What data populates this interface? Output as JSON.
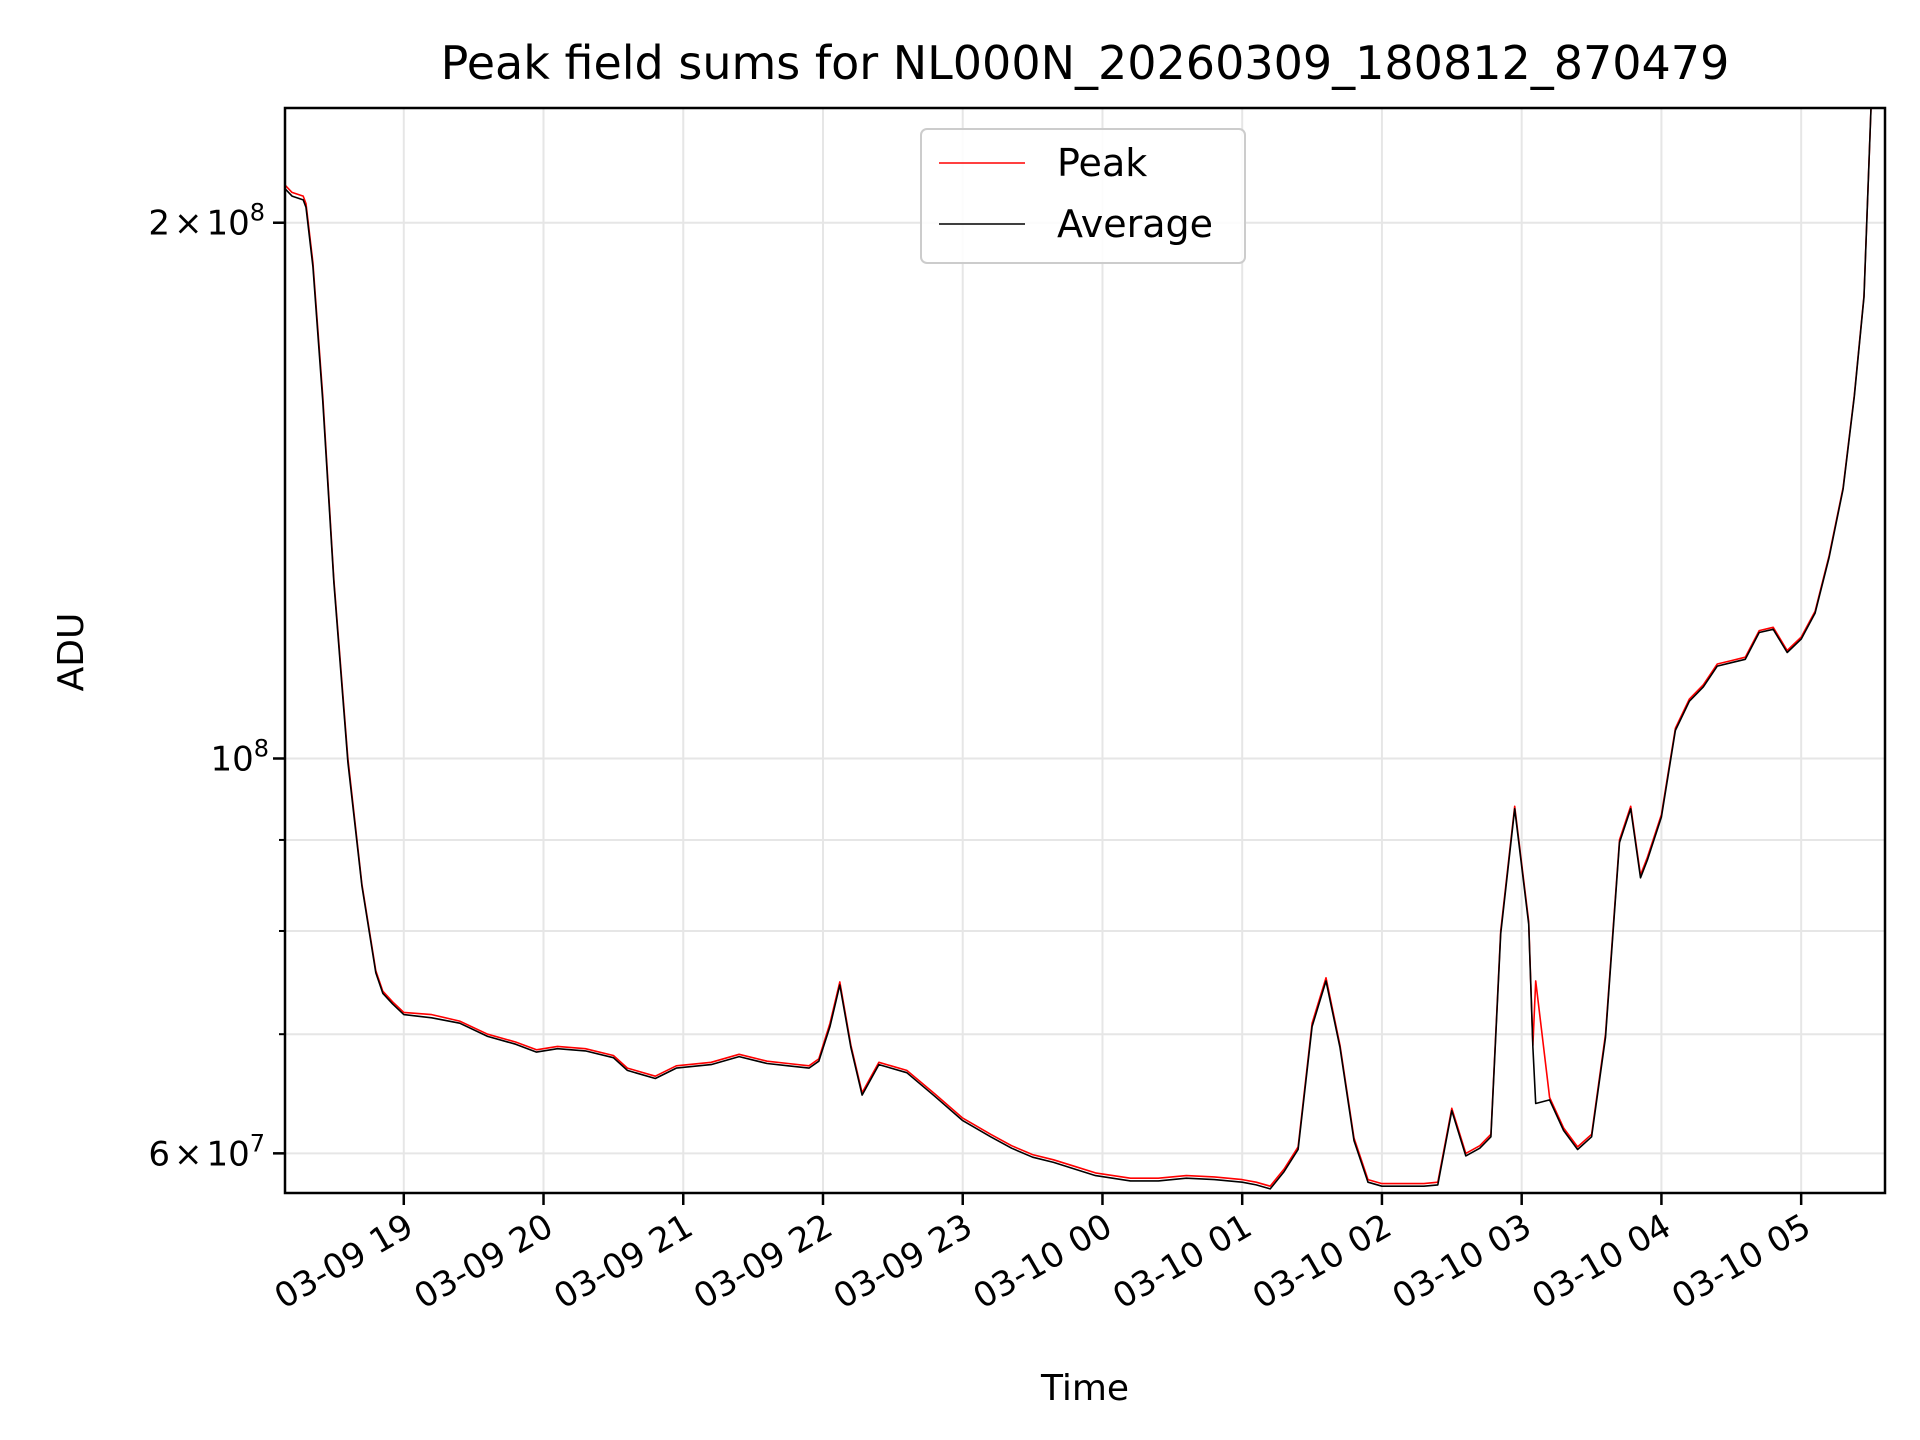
{
  "chart_data": {
    "type": "line",
    "title": "Peak field sums for NL000N_20260309_180812_870479",
    "xlabel": "Time",
    "ylabel": "ADU",
    "yscale": "log",
    "ylim": [
      57000000,
      232000000
    ],
    "xlim_hours": [
      18.15,
      29.6
    ],
    "grid": true,
    "legend_position": "top-center",
    "x_ticks": [
      {
        "hour": 19,
        "label": "03-09 19"
      },
      {
        "hour": 20,
        "label": "03-09 20"
      },
      {
        "hour": 21,
        "label": "03-09 21"
      },
      {
        "hour": 22,
        "label": "03-09 22"
      },
      {
        "hour": 23,
        "label": "03-09 23"
      },
      {
        "hour": 24,
        "label": "03-10 00"
      },
      {
        "hour": 25,
        "label": "03-10 01"
      },
      {
        "hour": 26,
        "label": "03-10 02"
      },
      {
        "hour": 27,
        "label": "03-10 03"
      },
      {
        "hour": 28,
        "label": "03-10 04"
      },
      {
        "hour": 29,
        "label": "03-10 05"
      }
    ],
    "y_major_ticks": [
      {
        "value": 60000000,
        "mantissa": "6",
        "times": "×",
        "base": "10",
        "exp": "7"
      },
      {
        "value": 100000000,
        "mantissa": "",
        "times": "",
        "base": "10",
        "exp": "8"
      },
      {
        "value": 200000000,
        "mantissa": "2",
        "times": "×",
        "base": "10",
        "exp": "8"
      }
    ],
    "y_minor_gridlines": [
      70000000,
      80000000,
      90000000
    ],
    "series": [
      {
        "name": "Peak",
        "color": "#ff0000",
        "x_hours": [
          18.15,
          18.2,
          18.28,
          18.3,
          18.35,
          18.42,
          18.5,
          18.6,
          18.7,
          18.8,
          18.85,
          18.92,
          19.0,
          19.2,
          19.4,
          19.6,
          19.8,
          19.95,
          20.1,
          20.3,
          20.5,
          20.6,
          20.8,
          20.95,
          21.2,
          21.4,
          21.6,
          21.75,
          21.9,
          21.97,
          22.05,
          22.12,
          22.2,
          22.28,
          22.4,
          22.6,
          22.8,
          23.0,
          23.2,
          23.35,
          23.5,
          23.65,
          23.8,
          23.95,
          24.2,
          24.4,
          24.6,
          24.8,
          25.0,
          25.1,
          25.2,
          25.3,
          25.4,
          25.5,
          25.6,
          25.7,
          25.8,
          25.9,
          26.0,
          26.2,
          26.3,
          26.4,
          26.5,
          26.6,
          26.7,
          26.78,
          26.85,
          26.95,
          27.05,
          27.08,
          27.1,
          27.2,
          27.3,
          27.4,
          27.5,
          27.6,
          27.7,
          27.78,
          27.85,
          27.9,
          28.0,
          28.1,
          28.2,
          28.3,
          28.4,
          28.5,
          28.6,
          28.7,
          28.8,
          28.9,
          29.0,
          29.1,
          29.2,
          29.3,
          29.38,
          29.45,
          29.5
        ],
        "values": [
          210000000,
          208000000,
          207000000,
          205000000,
          190000000,
          160000000,
          126000000,
          100000000,
          85000000,
          76000000,
          74000000,
          73000000,
          72000000,
          71800000,
          71200000,
          70000000,
          69300000,
          68600000,
          68900000,
          68700000,
          68100000,
          67000000,
          66300000,
          67200000,
          67500000,
          68200000,
          67600000,
          67400000,
          67200000,
          67800000,
          71000000,
          74900000,
          69000000,
          64900000,
          67500000,
          66800000,
          64800000,
          62800000,
          61500000,
          60600000,
          59900000,
          59500000,
          59000000,
          58500000,
          58100000,
          58100000,
          58300000,
          58200000,
          58000000,
          57800000,
          57500000,
          58800000,
          60500000,
          71000000,
          75300000,
          69000000,
          61200000,
          58000000,
          57700000,
          57700000,
          57700000,
          57800000,
          63600000,
          60000000,
          60600000,
          61500000,
          80000000,
          94000000,
          81000000,
          69000000,
          75000000,
          64500000,
          62000000,
          60500000,
          61500000,
          70000000,
          90000000,
          94000000,
          86000000,
          88000000,
          93000000,
          104000000,
          108000000,
          110000000,
          113000000,
          113500000,
          114000000,
          118000000,
          118500000,
          115000000,
          117000000,
          121000000,
          130000000,
          142000000,
          160000000,
          182000000,
          232000000
        ]
      },
      {
        "name": "Average",
        "color": "#000000",
        "x_hours": [
          18.15,
          18.2,
          18.28,
          18.3,
          18.35,
          18.42,
          18.5,
          18.6,
          18.7,
          18.8,
          18.85,
          18.92,
          19.0,
          19.2,
          19.4,
          19.6,
          19.8,
          19.95,
          20.1,
          20.3,
          20.5,
          20.6,
          20.8,
          20.95,
          21.2,
          21.4,
          21.6,
          21.75,
          21.9,
          21.97,
          22.05,
          22.12,
          22.2,
          22.28,
          22.4,
          22.6,
          22.8,
          23.0,
          23.2,
          23.35,
          23.5,
          23.65,
          23.8,
          23.95,
          24.2,
          24.4,
          24.6,
          24.8,
          25.0,
          25.1,
          25.2,
          25.3,
          25.4,
          25.5,
          25.6,
          25.7,
          25.8,
          25.9,
          26.0,
          26.2,
          26.3,
          26.4,
          26.5,
          26.6,
          26.7,
          26.78,
          26.85,
          26.95,
          27.05,
          27.08,
          27.1,
          27.2,
          27.3,
          27.4,
          27.5,
          27.6,
          27.7,
          27.78,
          27.85,
          27.9,
          28.0,
          28.1,
          28.2,
          28.3,
          28.4,
          28.5,
          28.6,
          28.7,
          28.8,
          28.9,
          29.0,
          29.1,
          29.2,
          29.3,
          29.38,
          29.45,
          29.5
        ],
        "values": [
          209000000,
          207000000,
          206000000,
          204000000,
          189000000,
          159000000,
          125500000,
          99500000,
          84800000,
          75800000,
          73800000,
          72800000,
          71800000,
          71500000,
          71000000,
          69800000,
          69100000,
          68400000,
          68700000,
          68500000,
          67900000,
          66800000,
          66100000,
          67000000,
          67300000,
          68000000,
          67400000,
          67200000,
          67000000,
          67600000,
          70700000,
          74600000,
          68800000,
          64700000,
          67300000,
          66600000,
          64600000,
          62600000,
          61300000,
          60400000,
          59700000,
          59300000,
          58800000,
          58300000,
          57900000,
          57900000,
          58100000,
          58000000,
          57800000,
          57600000,
          57300000,
          58600000,
          60300000,
          70700000,
          75000000,
          68800000,
          61000000,
          57800000,
          57500000,
          57500000,
          57500000,
          57600000,
          63400000,
          59800000,
          60400000,
          61300000,
          79700000,
          93700000,
          80700000,
          68800000,
          64000000,
          64300000,
          61800000,
          60300000,
          61300000,
          69700000,
          89700000,
          93700000,
          85700000,
          87700000,
          92700000,
          103700000,
          107700000,
          109700000,
          112700000,
          113200000,
          113700000,
          117700000,
          118200000,
          114700000,
          116700000,
          120700000,
          129700000,
          141700000,
          159700000,
          181700000,
          232000000
        ]
      }
    ]
  }
}
